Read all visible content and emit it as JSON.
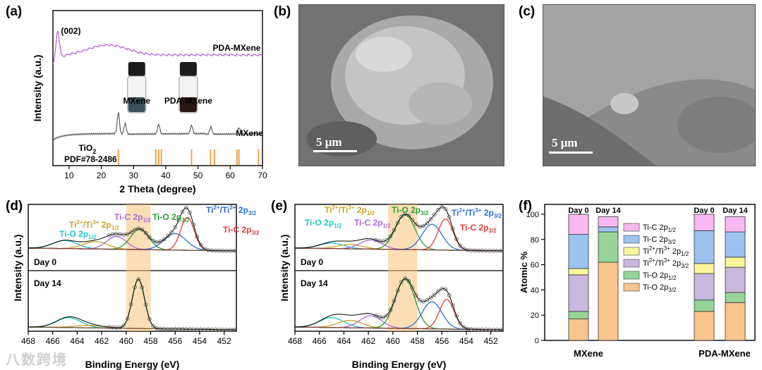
{
  "panels": {
    "a": "(a)",
    "b": "(b)",
    "c": "(c)",
    "d": "(d)",
    "e": "(e)",
    "f": "(f)"
  },
  "watermark": "八数跨境",
  "sem": {
    "b_scale": "5 μm",
    "c_scale": "5 μm"
  },
  "chart_data": [
    {
      "id": "a",
      "type": "line",
      "title": "",
      "xlabel": "2 Theta (degree)",
      "ylabel": "Intensity (a.u.)",
      "xlim": [
        5,
        70
      ],
      "xticks": [
        10,
        20,
        30,
        40,
        50,
        60,
        70
      ],
      "series": [
        {
          "name": "PDA-MXene",
          "color": "#b767d9",
          "peaks": [
            {
              "x": 6.5,
              "h": 1.0
            }
          ],
          "hump": {
            "x": 22,
            "h": 0.5
          }
        },
        {
          "name": "MXene",
          "color": "#555555",
          "peaks": [
            {
              "x": 25.3,
              "h": 1.0
            },
            {
              "x": 27.4,
              "h": 0.5
            },
            {
              "x": 37.8,
              "h": 0.45
            },
            {
              "x": 48.0,
              "h": 0.4
            },
            {
              "x": 54.0,
              "h": 0.35
            },
            {
              "x": 62.7,
              "h": 0.3
            }
          ]
        }
      ],
      "reference": {
        "name": "TiO",
        "subscript": "2",
        "pdf": "PDF#78-2486",
        "color": "#f29b38",
        "lines": [
          25.3,
          36.9,
          37.8,
          38.6,
          48.0,
          53.9,
          55.1,
          62.1,
          62.7,
          68.8,
          70.3
        ]
      },
      "annotations": [
        {
          "text": "(002)"
        },
        {
          "text": "PDA-MXene"
        },
        {
          "text": "MXene"
        }
      ],
      "inset": {
        "vials": [
          "MXene",
          "PDA-MXene"
        ]
      }
    },
    {
      "id": "d",
      "type": "line",
      "xlabel": "Binding Energy (eV)",
      "ylabel": "Intensity (a.u.)",
      "xlim": [
        468,
        451
      ],
      "xticks": [
        468,
        466,
        464,
        462,
        460,
        458,
        456,
        454,
        452
      ],
      "highlight": [
        460.0,
        458.0
      ],
      "legend_labels": [
        {
          "key": "tio_l",
          "base": "Ti-O 2p",
          "sub": "1/2",
          "color": "#1ec8c8"
        },
        {
          "key": "ti23_l",
          "base": "Ti",
          "sup1": "2+",
          "mid": "/Ti",
          "sup2": "3+",
          "tail": " 2p",
          "sub": "1/2",
          "color": "#c9a227"
        },
        {
          "key": "tic_l",
          "base": "Ti-C 2p",
          "sub": "1/2",
          "color": "#b06ad9"
        },
        {
          "key": "tio_r",
          "base": "Ti-O 2p",
          "sub": "3/2",
          "color": "#2e9e2e"
        },
        {
          "key": "ti23_r",
          "base": "Ti",
          "sup1": "2+",
          "mid": "/Ti",
          "sup2": "3+",
          "tail": " 2p",
          "sub": "3/2",
          "color": "#2e6fd0"
        },
        {
          "key": "tic_r",
          "base": "Ti-C 2p",
          "sub": "3/2",
          "color": "#e03c3c"
        }
      ],
      "subplots": [
        {
          "label": "Day 0",
          "components": [
            {
              "c": 465.0,
              "h": 0.22,
              "w": 1.0,
              "color": "#1ec8c8"
            },
            {
              "c": 462.5,
              "h": 0.2,
              "w": 1.0,
              "color": "#c9a227"
            },
            {
              "c": 460.8,
              "h": 0.35,
              "w": 0.8,
              "color": "#b06ad9"
            },
            {
              "c": 458.9,
              "h": 0.55,
              "w": 0.75,
              "color": "#2e9e2e"
            },
            {
              "c": 456.0,
              "h": 0.45,
              "w": 0.9,
              "color": "#2e6fd0"
            },
            {
              "c": 455.0,
              "h": 0.9,
              "w": 0.55,
              "color": "#e03c3c"
            }
          ]
        },
        {
          "label": "Day 14",
          "components": [
            {
              "c": 464.7,
              "h": 0.2,
              "w": 1.0,
              "color": "#1ec8c8"
            },
            {
              "c": 463.0,
              "h": 0.05,
              "w": 1.2,
              "color": "#c9a227"
            },
            {
              "c": 459.0,
              "h": 1.0,
              "w": 0.5,
              "color": "#2e9e2e"
            }
          ]
        }
      ]
    },
    {
      "id": "e",
      "type": "line",
      "xlabel": "Binding Energy (eV)",
      "ylabel": "Intensity (a.u.)",
      "xlim": [
        468,
        451
      ],
      "xticks": [
        468,
        466,
        464,
        462,
        460,
        458,
        456,
        454,
        452
      ],
      "highlight": [
        460.4,
        458.0
      ],
      "legend_labels": [
        {
          "key": "tio_l",
          "base": "Ti-O 2p",
          "sub": "1/2",
          "color": "#1ec8c8"
        },
        {
          "key": "ti23_l",
          "base": "Ti",
          "sup1": "2+",
          "mid": "/Ti",
          "sup2": "3+",
          "tail": " 2p",
          "sub": "1/2",
          "color": "#c9a227"
        },
        {
          "key": "tic_l",
          "base": "Ti-C 2p",
          "sub": "1/2",
          "color": "#b06ad9"
        },
        {
          "key": "tio_r",
          "base": "Ti-O 2p",
          "sub": "3/2",
          "color": "#2e9e2e"
        },
        {
          "key": "ti23_r",
          "base": "Ti",
          "sup1": "2+",
          "mid": "/Ti",
          "sup2": "3+",
          "tail": " 2p",
          "sub": "3/2",
          "color": "#2e6fd0"
        },
        {
          "key": "tic_r",
          "base": "Ti-C 2p",
          "sub": "3/2",
          "color": "#e03c3c"
        }
      ],
      "subplots": [
        {
          "label": "Day 0",
          "components": [
            {
              "c": 465.0,
              "h": 0.15,
              "w": 1.0,
              "color": "#1ec8c8"
            },
            {
              "c": 463.5,
              "h": 0.12,
              "w": 1.0,
              "color": "#c9a227"
            },
            {
              "c": 461.8,
              "h": 0.25,
              "w": 0.9,
              "color": "#b06ad9"
            },
            {
              "c": 459.0,
              "h": 0.95,
              "w": 0.8,
              "color": "#2e9e2e"
            },
            {
              "c": 456.8,
              "h": 0.7,
              "w": 0.8,
              "color": "#2e6fd0"
            },
            {
              "c": 455.7,
              "h": 0.85,
              "w": 0.6,
              "color": "#e03c3c"
            }
          ]
        },
        {
          "label": "Day 14",
          "components": [
            {
              "c": 465.0,
              "h": 0.2,
              "w": 1.0,
              "color": "#1ec8c8"
            },
            {
              "c": 463.5,
              "h": 0.15,
              "w": 1.0,
              "color": "#c9a227"
            },
            {
              "c": 461.8,
              "h": 0.25,
              "w": 0.9,
              "color": "#b06ad9"
            },
            {
              "c": 459.0,
              "h": 1.0,
              "w": 0.8,
              "color": "#2e9e2e"
            },
            {
              "c": 456.8,
              "h": 0.55,
              "w": 0.8,
              "color": "#2e6fd0"
            },
            {
              "c": 455.6,
              "h": 0.6,
              "w": 0.6,
              "color": "#e03c3c"
            }
          ]
        }
      ]
    },
    {
      "id": "f",
      "type": "bar",
      "ylabel": "Atomic %",
      "ylim": [
        0,
        100
      ],
      "yticks": [
        0,
        20,
        40,
        60,
        80,
        100
      ],
      "groups": [
        "MXene",
        "PDA-MXene"
      ],
      "bars": [
        {
          "group": "MXene",
          "label": "Day 0",
          "stack": [
            17,
            6,
            29,
            5,
            27,
            16
          ]
        },
        {
          "group": "MXene",
          "label": "Day 14",
          "stack": [
            62,
            24,
            0,
            0,
            4,
            8
          ]
        },
        {
          "group": "PDA-MXene",
          "label": "Day 0",
          "stack": [
            23,
            9,
            21,
            8,
            26,
            13
          ]
        },
        {
          "group": "PDA-MXene",
          "label": "Day 14",
          "stack": [
            30,
            8,
            20,
            8,
            20,
            12
          ]
        }
      ],
      "legend": [
        {
          "base": "Ti-C 2p",
          "sub": "1/2",
          "color": "#f9b9f0"
        },
        {
          "base": "Ti-C 2p",
          "sub": "3/2",
          "color": "#9cc3f0"
        },
        {
          "base": "Ti",
          "sup1": "2+",
          "mid": "/Ti",
          "sup2": "3+",
          "tail": " 2p",
          "sub": "1/2",
          "color": "#fbf59c"
        },
        {
          "base": "Ti",
          "sup1": "2+",
          "mid": "/Ti",
          "sup2": "3+",
          "tail": " 2p",
          "sub": "3/2",
          "color": "#c9b8dc"
        },
        {
          "base": "Ti-O 2p",
          "sub": "1/2",
          "color": "#97d49a"
        },
        {
          "base": "Ti-O 2p",
          "sub": "3/2",
          "color": "#f9c58c"
        }
      ]
    }
  ]
}
